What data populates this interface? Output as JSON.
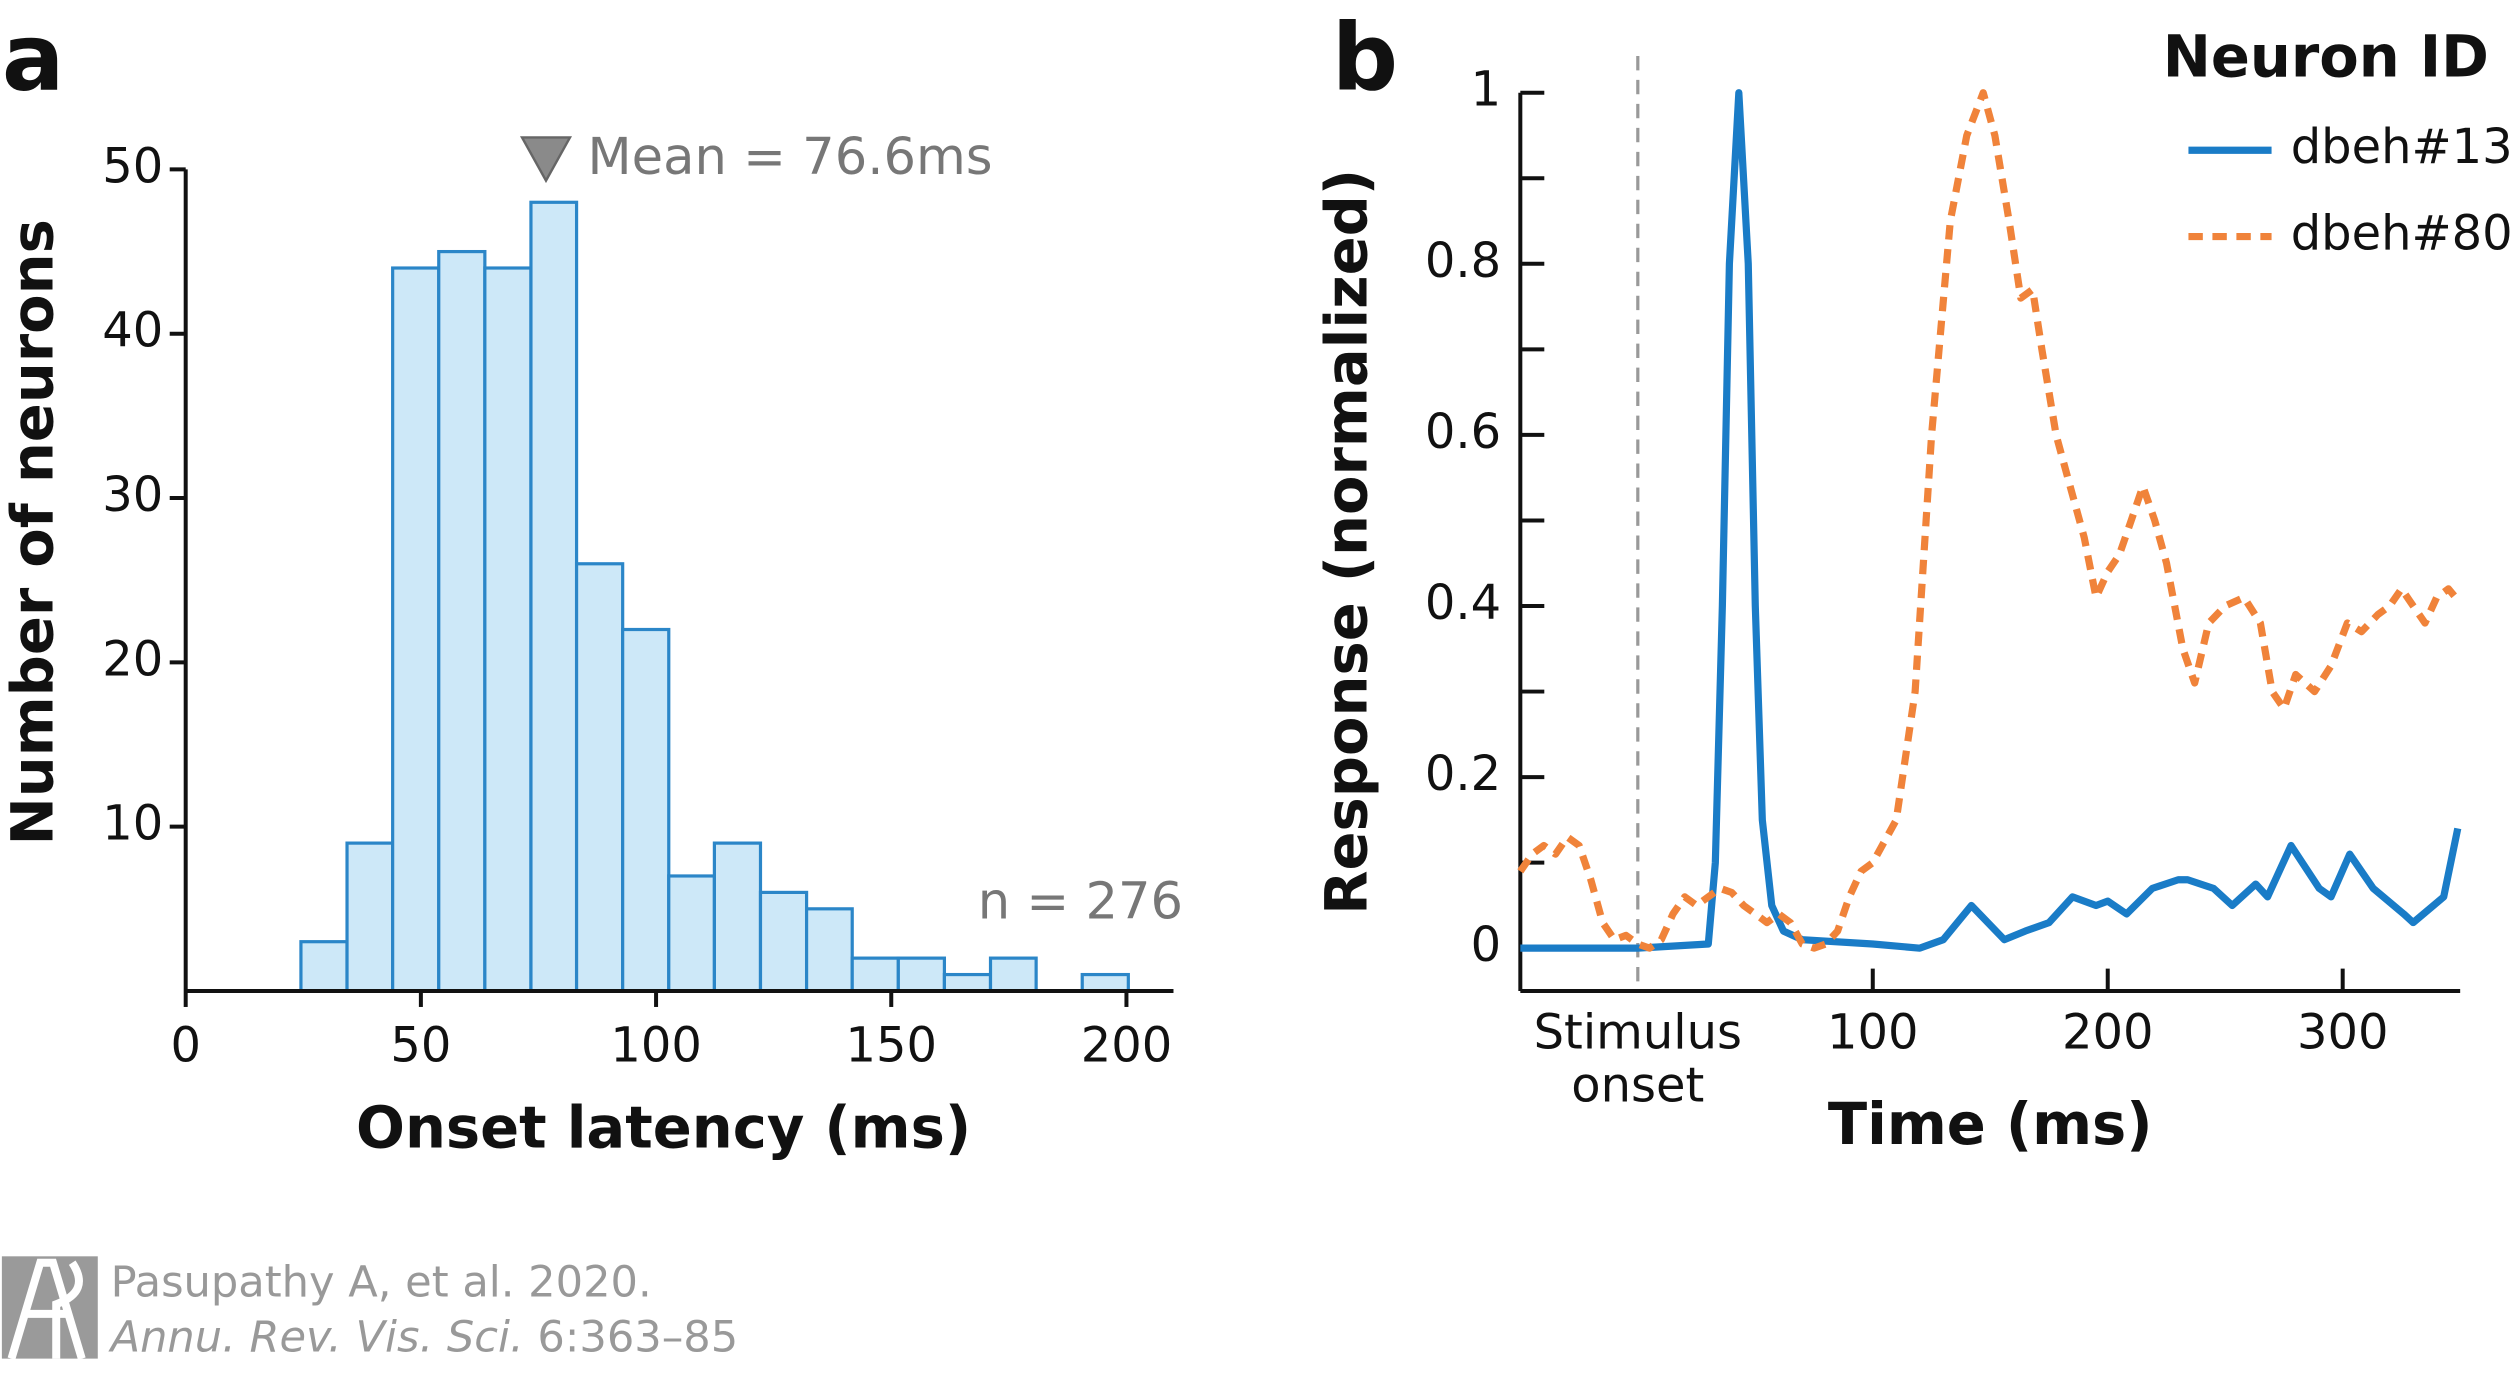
{
  "chart_data": [
    {
      "type": "histogram",
      "panel_label": "a",
      "xlabel": "Onset latency (ms)",
      "ylabel": "Number of neurons",
      "bins": [
        24.5,
        34.3,
        44.0,
        53.8,
        63.6,
        73.4,
        83.1,
        92.9,
        102.7,
        112.4,
        122.2,
        132.0,
        141.7,
        151.5,
        161.3,
        171.1,
        180.8,
        190.6,
        200.4
      ],
      "values": [
        3,
        9,
        44,
        45,
        44,
        48,
        26,
        22,
        7,
        9,
        6,
        5,
        2,
        2,
        1,
        2,
        0,
        1
      ],
      "color": "#cde8f8",
      "edge_color": "#2b86c8",
      "xlim": [
        0,
        210
      ],
      "xticks": [
        0,
        50,
        100,
        150,
        200
      ],
      "ylim": [
        0,
        50
      ],
      "yticks": [
        10,
        20,
        30,
        40,
        50
      ],
      "mean": 76.6,
      "mean_label": "Mean = 76.6ms",
      "count_label": "n = 276"
    },
    {
      "type": "line",
      "panel_label": "b",
      "xlabel": "Time (ms)",
      "ylabel": "Response (normalized)",
      "legend_title": "Neuron ID",
      "legend": "upper right",
      "xlim": [
        -50,
        350
      ],
      "xticks": [
        {
          "value": 0,
          "label": "Stimulus onset"
        },
        100,
        200,
        300
      ],
      "ylim": [
        -0.05,
        1
      ],
      "yticks": [
        0,
        0.2,
        0.4,
        0.6,
        0.8,
        1
      ],
      "minor_yticks": [
        0.1,
        0.3,
        0.5,
        0.7,
        0.9
      ],
      "series": [
        {
          "name": "dbeh#13",
          "color": "#1a7cc7",
          "dash": false,
          "x": [
            -50,
            0,
            30,
            33,
            36,
            39,
            43,
            47,
            50,
            53,
            57,
            62,
            70,
            100,
            120,
            130,
            142,
            156,
            165,
            175,
            185,
            195,
            200,
            208,
            219,
            230,
            234,
            245,
            253,
            263,
            268,
            278,
            290,
            295,
            303,
            313,
            326,
            330,
            343,
            349
          ],
          "values": [
            0,
            0,
            0.005,
            0.1,
            0.4,
            0.8,
            1.0,
            0.8,
            0.4,
            0.15,
            0.05,
            0.02,
            0.01,
            0.005,
            0,
            0.01,
            0.05,
            0.01,
            0.02,
            0.03,
            0.06,
            0.05,
            0.055,
            0.04,
            0.07,
            0.08,
            0.08,
            0.07,
            0.05,
            0.075,
            0.06,
            0.12,
            0.07,
            0.06,
            0.11,
            0.07,
            0.04,
            0.03,
            0.06,
            0.14
          ]
        },
        {
          "name": "dbeh#80",
          "color": "#f0833a",
          "dash": true,
          "x": [
            -50,
            -45,
            -40,
            -35,
            -30,
            -25,
            -20,
            -15,
            -10,
            -5,
            0,
            5,
            10,
            15,
            20,
            25,
            30,
            35,
            40,
            45,
            50,
            55,
            60,
            65,
            70,
            75,
            80,
            85,
            90,
            95,
            100,
            110,
            118,
            125,
            133,
            140,
            147,
            152,
            158,
            163,
            168,
            172,
            178,
            183,
            190,
            195,
            200,
            205,
            210,
            215,
            220,
            225,
            232,
            237,
            243,
            250,
            258,
            265,
            270,
            275,
            280,
            288,
            295,
            302,
            308,
            315,
            320,
            325,
            330,
            335,
            340,
            345,
            348
          ],
          "values": [
            0.09,
            0.11,
            0.12,
            0.11,
            0.13,
            0.12,
            0.08,
            0.03,
            0.01,
            0.015,
            0.005,
            0,
            0.01,
            0.04,
            0.06,
            0.05,
            0.06,
            0.07,
            0.065,
            0.05,
            0.04,
            0.03,
            0.04,
            0.03,
            0.005,
            0,
            0.005,
            0.02,
            0.06,
            0.09,
            0.1,
            0.15,
            0.3,
            0.6,
            0.85,
            0.95,
            1.0,
            0.95,
            0.85,
            0.76,
            0.77,
            0.7,
            0.6,
            0.55,
            0.48,
            0.41,
            0.44,
            0.46,
            0.5,
            0.54,
            0.5,
            0.45,
            0.35,
            0.31,
            0.38,
            0.4,
            0.41,
            0.38,
            0.3,
            0.28,
            0.32,
            0.3,
            0.33,
            0.38,
            0.37,
            0.39,
            0.4,
            0.42,
            0.4,
            0.38,
            0.41,
            0.42,
            0.41
          ]
        }
      ]
    }
  ],
  "credit": {
    "citation": "Pasupathy A, et al. 2020.",
    "journal": "Annu. Rev. Vis. Sci.",
    "pages": "6:363–85"
  }
}
